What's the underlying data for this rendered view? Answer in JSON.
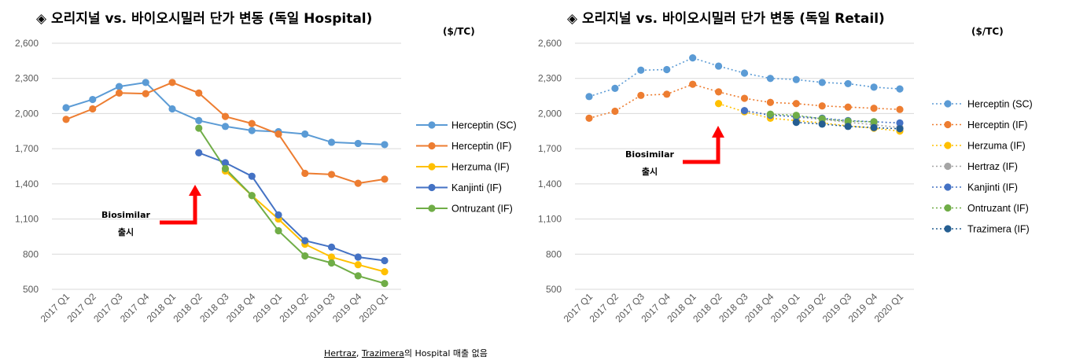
{
  "chart_data": [
    {
      "type": "line",
      "title": "◈ 오리지널 vs. 바이오시밀러 단가 변동 (독일 Hospital)",
      "unit": "($/TC)",
      "ylim": [
        500,
        2600
      ],
      "yticks": [
        "2,600",
        "2,300",
        "2,000",
        "1,700",
        "1,400",
        "1,100",
        "800",
        "500"
      ],
      "categories": [
        "2017 Q1",
        "2017 Q2",
        "2017 Q3",
        "2017 Q4",
        "2018 Q1",
        "2018 Q2",
        "2018 Q3",
        "2018 Q4",
        "2019 Q1",
        "2019 Q2",
        "2019 Q3",
        "2019 Q4",
        "2020 Q1"
      ],
      "line_style": "solid",
      "legend_position": "right",
      "series": [
        {
          "name": "Herceptin (SC)",
          "color": "#5B9BD5",
          "values": [
            2050,
            2120,
            2230,
            2265,
            2040,
            1940,
            1890,
            1855,
            1845,
            1825,
            1755,
            1745,
            1735
          ]
        },
        {
          "name": "Herceptin (IF)",
          "color": "#ED7D31",
          "values": [
            1950,
            2040,
            2175,
            2170,
            2265,
            2175,
            1975,
            1915,
            1825,
            1490,
            1480,
            1405,
            1440
          ]
        },
        {
          "name": "Herzuma (IF)",
          "color": "#FFC000",
          "values": [
            null,
            null,
            null,
            null,
            null,
            null,
            1510,
            1300,
            1100,
            885,
            775,
            710,
            650
          ]
        },
        {
          "name": "Kanjinti (IF)",
          "color": "#4472C4",
          "values": [
            null,
            null,
            null,
            null,
            null,
            1665,
            1580,
            1465,
            1135,
            915,
            860,
            775,
            745
          ]
        },
        {
          "name": "Ontruzant (IF)",
          "color": "#70AD47",
          "values": [
            null,
            null,
            null,
            null,
            null,
            1875,
            1530,
            1300,
            1000,
            785,
            725,
            615,
            550
          ]
        }
      ],
      "annotation": {
        "line1": "Biosimilar",
        "line2": "출시"
      }
    },
    {
      "type": "line",
      "title": "◈ 오리지널 vs. 바이오시밀러 단가 변동 (독일 Retail)",
      "unit": "($/TC)",
      "ylim": [
        500,
        2600
      ],
      "yticks": [
        "2,600",
        "2,300",
        "2,000",
        "1,700",
        "1,400",
        "1,100",
        "800",
        "500"
      ],
      "categories": [
        "2017 Q1",
        "2017 Q2",
        "2017 Q3",
        "2017 Q4",
        "2018 Q1",
        "2018 Q2",
        "2018 Q3",
        "2018 Q4",
        "2019 Q1",
        "2019 Q2",
        "2019 Q3",
        "2019 Q4",
        "2020 Q1"
      ],
      "line_style": "dotted",
      "legend_position": "right",
      "series": [
        {
          "name": "Herceptin (SC)",
          "color": "#5B9BD5",
          "values": [
            2145,
            2215,
            2370,
            2375,
            2475,
            2405,
            2345,
            2300,
            2290,
            2265,
            2255,
            2225,
            2210
          ]
        },
        {
          "name": "Herceptin (IF)",
          "color": "#ED7D31",
          "values": [
            1960,
            2020,
            2155,
            2165,
            2250,
            2185,
            2130,
            2095,
            2085,
            2065,
            2055,
            2045,
            2035
          ]
        },
        {
          "name": "Herzuma (IF)",
          "color": "#FFC000",
          "values": [
            null,
            null,
            null,
            null,
            null,
            2085,
            2015,
            1960,
            1940,
            1920,
            1895,
            1875,
            1850
          ]
        },
        {
          "name": "Hertraz (IF)",
          "color": "#A5A5A5",
          "values": [
            null,
            null,
            null,
            null,
            null,
            null,
            2025,
            1990,
            1970,
            1950,
            1925,
            1905,
            1880
          ]
        },
        {
          "name": "Kanjinti (IF)",
          "color": "#4472C4",
          "values": [
            null,
            null,
            null,
            null,
            null,
            null,
            2025,
            1985,
            1975,
            1960,
            1940,
            1930,
            1920
          ]
        },
        {
          "name": "Ontruzant (IF)",
          "color": "#70AD47",
          "values": [
            null,
            null,
            null,
            null,
            null,
            null,
            null,
            1995,
            1985,
            1955,
            1935,
            1930,
            null
          ]
        },
        {
          "name": "Trazimera (IF)",
          "color": "#255E91",
          "values": [
            null,
            null,
            null,
            null,
            null,
            null,
            null,
            null,
            1925,
            1910,
            1890,
            1880,
            1870
          ]
        }
      ],
      "annotation": {
        "line1": "Biosimilar",
        "line2": "출시"
      }
    }
  ],
  "footnote": {
    "part1": "Hertraz",
    "sep": ", ",
    "part2": "Trazimera",
    "rest": "의 Hospital 매출 없음"
  },
  "arrow_color": "#FF0000"
}
